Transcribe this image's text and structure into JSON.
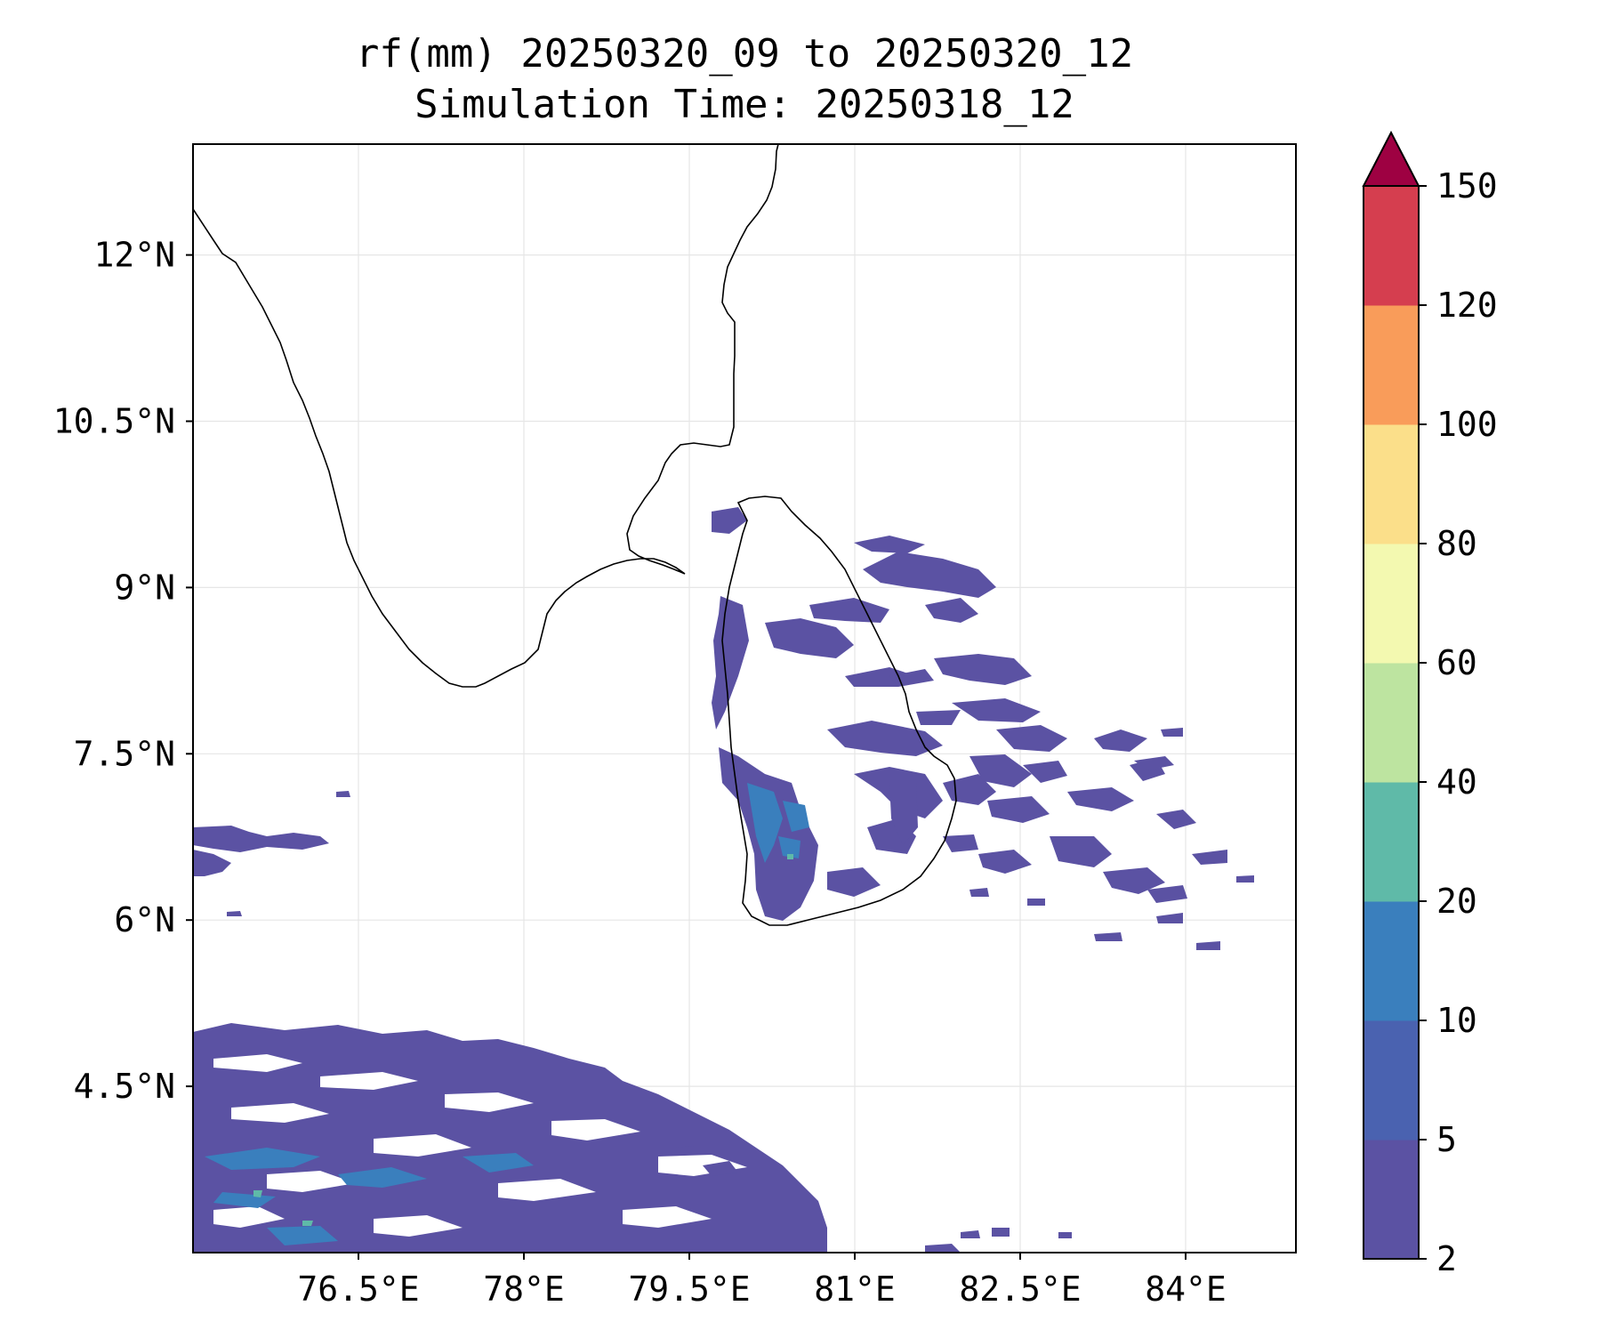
{
  "title": {
    "line1": "rf(mm) 20250320_09 to 20250320_12",
    "line2": "Simulation Time: 20250318_12"
  },
  "map": {
    "lon_range": [
      75.0,
      85.0
    ],
    "lat_range": [
      3.0,
      13.0
    ],
    "gridlines": true,
    "x_ticks": [
      {
        "value": 76.5,
        "label": "76.5°E"
      },
      {
        "value": 78.0,
        "label": "78°E"
      },
      {
        "value": 79.5,
        "label": "79.5°E"
      },
      {
        "value": 81.0,
        "label": "81°E"
      },
      {
        "value": 82.5,
        "label": "82.5°E"
      },
      {
        "value": 84.0,
        "label": "84°E"
      }
    ],
    "y_ticks": [
      {
        "value": 12.0,
        "label": "12°N"
      },
      {
        "value": 10.5,
        "label": "10.5°N"
      },
      {
        "value": 9.0,
        "label": "9°N"
      },
      {
        "value": 7.5,
        "label": "7.5°N"
      },
      {
        "value": 6.0,
        "label": "6°N"
      },
      {
        "value": 4.5,
        "label": "4.5°N"
      }
    ]
  },
  "colorbar": {
    "levels": [
      {
        "label": "2"
      },
      {
        "label": "5"
      },
      {
        "label": "10"
      },
      {
        "label": "20"
      },
      {
        "label": "40"
      },
      {
        "label": "60"
      },
      {
        "label": "80"
      },
      {
        "label": "100"
      },
      {
        "label": "120"
      },
      {
        "label": "150"
      }
    ],
    "colors": [
      "#5b52a3",
      "#4a62b0",
      "#3a7fbd",
      "#5fbaa8",
      "#bde4a0",
      "#f3f9b0",
      "#fbdf8a",
      "#f99c5a",
      "#d53e4f"
    ],
    "extend_color": "#9e0142"
  },
  "colors": {
    "coastline": "#000000",
    "gridline": "#e6e6e6",
    "band_2_5": "#5b52a3",
    "band_5_10": "#4a62b0",
    "band_10_20": "#3a7fbd",
    "band_20_40": "#5fbaa8"
  }
}
